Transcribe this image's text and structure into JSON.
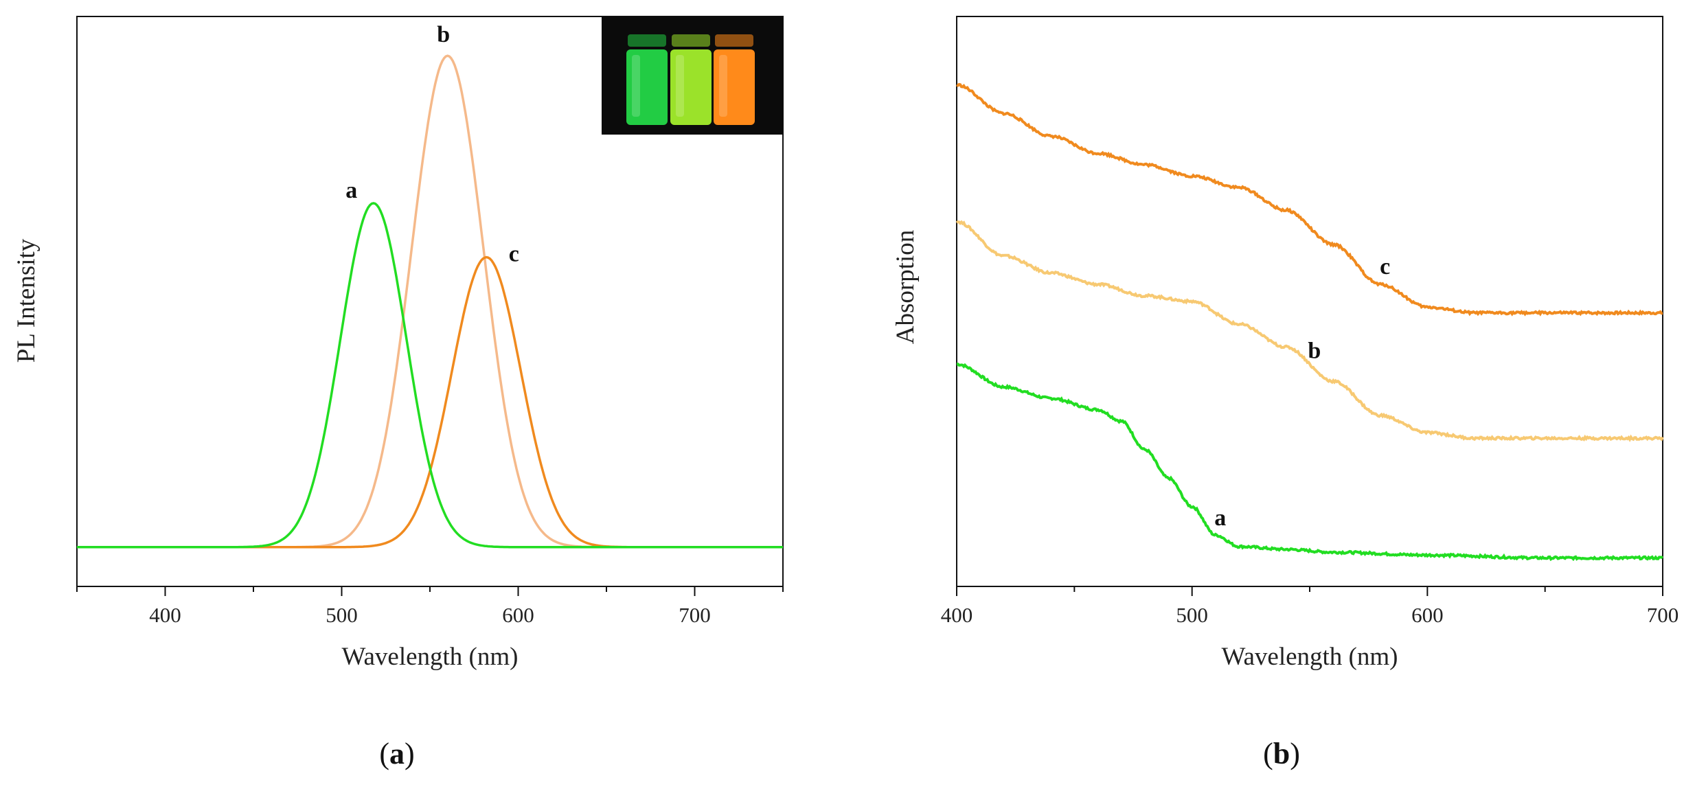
{
  "chart_data": [
    {
      "type": "line",
      "panel_label": "a",
      "xlabel": "Wavelength (nm)",
      "ylabel": "PL Intensity",
      "xlim": [
        350,
        750
      ],
      "x_ticks": [
        400,
        500,
        600,
        700
      ],
      "ylim": [
        -0.08,
        1.08
      ],
      "y_ticks_shown": false,
      "grid": false,
      "inset": "photo of three vials glowing green, yellow-green and orange",
      "series": [
        {
          "name": "a",
          "color": "#22dd22",
          "peak": 518,
          "fwhm": 44,
          "amplitude": 0.7,
          "x": [
            350,
            430,
            460,
            480,
            500,
            510,
            518,
            530,
            545,
            560,
            580,
            600,
            630,
            680,
            750
          ],
          "y": [
            0,
            0,
            0.02,
            0.12,
            0.47,
            0.63,
            0.7,
            0.62,
            0.36,
            0.14,
            0.04,
            0.015,
            0.005,
            0,
            0
          ]
        },
        {
          "name": "b",
          "color": "#f5b98a",
          "peak": 560,
          "fwhm": 48,
          "amplitude": 1.0,
          "x": [
            350,
            450,
            480,
            510,
            530,
            545,
            560,
            575,
            590,
            610,
            630,
            660,
            750
          ],
          "y": [
            0,
            0,
            0.02,
            0.16,
            0.47,
            0.8,
            1.0,
            0.83,
            0.45,
            0.13,
            0.03,
            0,
            0
          ]
        },
        {
          "name": "c",
          "color": "#f08a1e",
          "peak": 582,
          "fwhm": 46,
          "amplitude": 0.59,
          "x": [
            350,
            480,
            520,
            545,
            560,
            570,
            582,
            595,
            610,
            630,
            660,
            750
          ],
          "y": [
            0,
            0,
            0.02,
            0.17,
            0.4,
            0.54,
            0.59,
            0.49,
            0.26,
            0.05,
            0,
            0
          ]
        }
      ]
    },
    {
      "type": "line",
      "panel_label": "b",
      "xlabel": "Wavelength (nm)",
      "ylabel": "Absorption",
      "xlim": [
        400,
        700
      ],
      "x_ticks": [
        400,
        500,
        600,
        700
      ],
      "ylim": [
        0,
        1
      ],
      "y_ticks_shown": false,
      "grid": false,
      "series": [
        {
          "name": "a",
          "color": "#22dd22",
          "x": [
            400,
            420,
            440,
            460,
            470,
            480,
            490,
            500,
            510,
            520,
            540,
            560,
            600,
            650,
            700
          ],
          "y": [
            0.39,
            0.35,
            0.33,
            0.31,
            0.29,
            0.24,
            0.19,
            0.14,
            0.09,
            0.07,
            0.065,
            0.06,
            0.055,
            0.05,
            0.05
          ]
        },
        {
          "name": "b",
          "color": "#f7c972",
          "x": [
            400,
            420,
            440,
            460,
            480,
            500,
            520,
            540,
            560,
            580,
            600,
            620,
            650,
            700
          ],
          "y": [
            0.64,
            0.58,
            0.55,
            0.53,
            0.51,
            0.5,
            0.46,
            0.42,
            0.36,
            0.3,
            0.27,
            0.26,
            0.26,
            0.26
          ]
        },
        {
          "name": "c",
          "color": "#f08a1e",
          "x": [
            400,
            420,
            440,
            460,
            480,
            500,
            520,
            540,
            560,
            580,
            600,
            620,
            650,
            700
          ],
          "y": [
            0.88,
            0.83,
            0.79,
            0.76,
            0.74,
            0.72,
            0.7,
            0.66,
            0.6,
            0.53,
            0.49,
            0.48,
            0.48,
            0.48
          ]
        }
      ]
    }
  ],
  "captions": {
    "left": {
      "open": "(",
      "letter": "a",
      "close": ")"
    },
    "right": {
      "open": "(",
      "letter": "b",
      "close": ")"
    }
  },
  "vials": [
    "#22cc44",
    "#9be22a",
    "#ff8a1a"
  ]
}
